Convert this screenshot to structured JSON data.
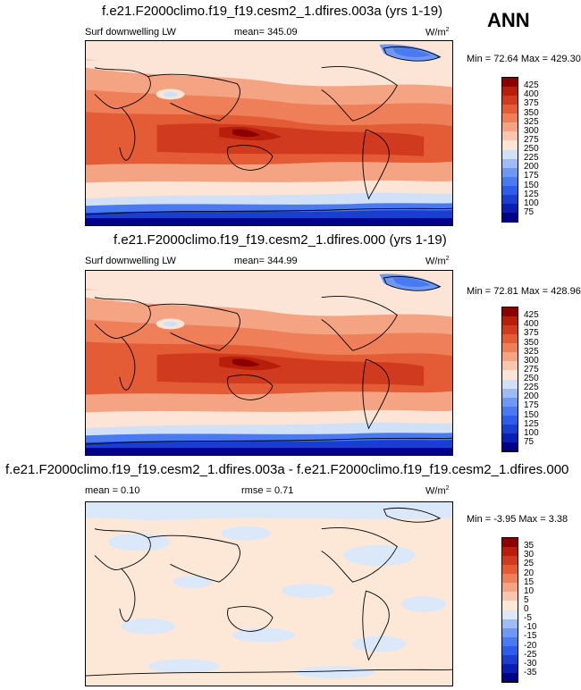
{
  "season": "ANN",
  "panels": [
    {
      "title": "f.e21.F2000climo.f19_f19.cesm2_1.dfires.003a (yrs 1-19)",
      "left_label": "Surf downwelling LW",
      "mid_label": "mean= 345.09",
      "units": "W/m",
      "units_sup": "2",
      "minmax": "Min = 72.64 Max = 429.30",
      "colorbar_ticks": [
        "425",
        "400",
        "375",
        "350",
        "325",
        "300",
        "275",
        "250",
        "225",
        "200",
        "175",
        "150",
        "125",
        "100",
        "75"
      ]
    },
    {
      "title": "f.e21.F2000climo.f19_f19.cesm2_1.dfires.000 (yrs 1-19)",
      "left_label": "Surf downwelling LW",
      "mid_label": "mean= 344.99",
      "units": "W/m",
      "units_sup": "2",
      "minmax": "Min = 72.81 Max = 428.96",
      "colorbar_ticks": [
        "425",
        "400",
        "375",
        "350",
        "325",
        "300",
        "275",
        "250",
        "225",
        "200",
        "175",
        "150",
        "125",
        "100",
        "75"
      ]
    },
    {
      "title": "f.e21.F2000climo.f19_f19.cesm2_1.dfires.003a - f.e21.F2000climo.f19_f19.cesm2_1.dfires.000",
      "left_label": "mean =   0.10",
      "mid_label": "rmse =   0.71",
      "units": "W/m",
      "units_sup": "2",
      "minmax": "Min = -3.95 Max =   3.38",
      "colorbar_ticks": [
        "35",
        "30",
        "25",
        "20",
        "15",
        "10",
        "5",
        "0",
        "-5",
        "-10",
        "-15",
        "-20",
        "-25",
        "-30",
        "-35"
      ]
    }
  ],
  "chart_data": [
    {
      "type": "heatmap",
      "title": "f.e21.F2000climo.f19_f19.cesm2_1.dfires.003a (yrs 1-19)",
      "variable": "Surf downwelling LW",
      "units": "W/m2",
      "mean": 345.09,
      "min": 72.64,
      "max": 429.3,
      "colorbar_levels": [
        75,
        100,
        125,
        150,
        175,
        200,
        225,
        250,
        275,
        300,
        325,
        350,
        375,
        400,
        425
      ],
      "colors": [
        "#00008b",
        "#0a1fb0",
        "#1a3fd0",
        "#2f5ce8",
        "#4a7af2",
        "#6f98f5",
        "#9dbbf5",
        "#cfe0f7",
        "#fce5d6",
        "#f8c6ad",
        "#f4a482",
        "#ee7f58",
        "#e45c36",
        "#d03a1e",
        "#b81e0a",
        "#8b0000"
      ]
    },
    {
      "type": "heatmap",
      "title": "f.e21.F2000climo.f19_f19.cesm2_1.dfires.000 (yrs 1-19)",
      "variable": "Surf downwelling LW",
      "units": "W/m2",
      "mean": 344.99,
      "min": 72.81,
      "max": 428.96,
      "colorbar_levels": [
        75,
        100,
        125,
        150,
        175,
        200,
        225,
        250,
        275,
        300,
        325,
        350,
        375,
        400,
        425
      ],
      "colors": [
        "#00008b",
        "#0a1fb0",
        "#1a3fd0",
        "#2f5ce8",
        "#4a7af2",
        "#6f98f5",
        "#9dbbf5",
        "#cfe0f7",
        "#fce5d6",
        "#f8c6ad",
        "#f4a482",
        "#ee7f58",
        "#e45c36",
        "#d03a1e",
        "#b81e0a",
        "#8b0000"
      ]
    },
    {
      "type": "heatmap",
      "title": "f.e21.F2000climo.f19_f19.cesm2_1.dfires.003a - f.e21.F2000climo.f19_f19.cesm2_1.dfires.000",
      "units": "W/m2",
      "mean": 0.1,
      "rmse": 0.71,
      "min": -3.95,
      "max": 3.38,
      "colorbar_levels": [
        -35,
        -30,
        -25,
        -20,
        -15,
        -10,
        -5,
        0,
        5,
        10,
        15,
        20,
        25,
        30,
        35
      ],
      "colors": [
        "#00008b",
        "#0a1fb0",
        "#1a3fd0",
        "#2f5ce8",
        "#4a7af2",
        "#6f98f5",
        "#9dbbf5",
        "#dbe8fa",
        "#fde8d8",
        "#f8c6ad",
        "#f4a482",
        "#ee7f58",
        "#e45c36",
        "#d03a1e",
        "#b81e0a",
        "#8b0000"
      ]
    }
  ]
}
